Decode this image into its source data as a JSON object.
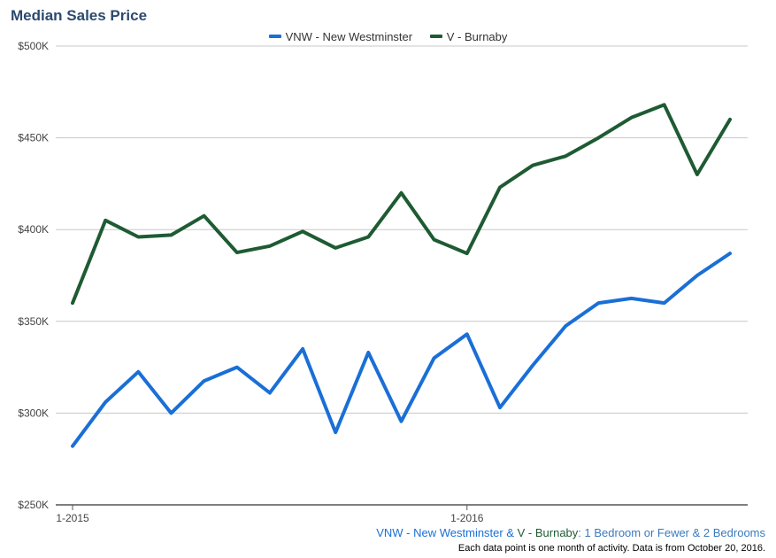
{
  "chart_data": {
    "type": "line",
    "title": "Median Sales Price",
    "x": [
      "2015-01",
      "2015-02",
      "2015-03",
      "2015-04",
      "2015-05",
      "2015-06",
      "2015-07",
      "2015-08",
      "2015-09",
      "2015-10",
      "2015-11",
      "2015-12",
      "2016-01",
      "2016-02",
      "2016-03",
      "2016-04",
      "2016-05",
      "2016-06",
      "2016-07",
      "2016-08",
      "2016-09"
    ],
    "x_tick_labels": [
      "1-2015",
      "1-2016"
    ],
    "y_tick_labels": [
      "$250K",
      "$300K",
      "$350K",
      "$400K",
      "$450K",
      "$500K"
    ],
    "y_ticks": [
      250000,
      300000,
      350000,
      400000,
      450000,
      500000
    ],
    "ylim": [
      250000,
      500000
    ],
    "grid": true,
    "legend_position": "top-center",
    "series": [
      {
        "name": "VNW - New Westminster",
        "color": "#1a6fd6",
        "values": [
          282000,
          306000,
          322500,
          300000,
          317500,
          325000,
          311000,
          335000,
          289500,
          333000,
          295500,
          330000,
          343000,
          303000,
          326000,
          347500,
          360000,
          362500,
          360000,
          375000,
          387000
        ]
      },
      {
        "name": "V - Burnaby",
        "color": "#1e5b33",
        "values": [
          360000,
          405000,
          396000,
          397000,
          407500,
          387500,
          391000,
          399000,
          390000,
          396000,
          420000,
          394500,
          387000,
          423000,
          435000,
          440000,
          450000,
          461000,
          468000,
          430000,
          460000
        ]
      }
    ]
  },
  "footer": {
    "area_a": "VNW - New Westminster",
    "amp": " & ",
    "area_b": "V - Burnaby",
    "rest": ": 1 Bedroom or Fewer & 2 Bedrooms",
    "note": "Each data point is one month of activity. Data is from October 20, 2016."
  }
}
